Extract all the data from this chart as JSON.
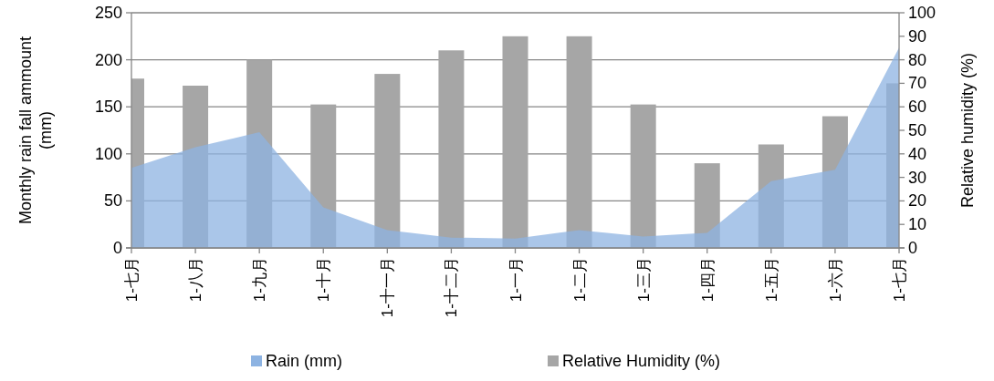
{
  "chart_data": {
    "type": "bar",
    "ylabel": "Monthly rain fall ammount (mm)",
    "y2label": "Relative humidity (%)",
    "categories": [
      "1-七月",
      "1-八月",
      "1-九月",
      "1-十月",
      "1-十一月",
      "1-十二月",
      "1-一月",
      "1-二月",
      "1-三月",
      "1-四月",
      "1-五月",
      "1-六月",
      "1-七月"
    ],
    "series": [
      {
        "name": "Rain (mm)",
        "type": "area",
        "color": "#8db3e2",
        "values": [
          85,
          107,
          123,
          43,
          19,
          11,
          10,
          19,
          12,
          16,
          71,
          83,
          213
        ]
      },
      {
        "name": "Relative Humidity (%)",
        "axis": "y2",
        "color": "#a6a6a6",
        "values": [
          72,
          69,
          80,
          61,
          74,
          84,
          90,
          90,
          61,
          36,
          44,
          56,
          70
        ]
      }
    ],
    "ylim": [
      0,
      250
    ],
    "yticks": [
      0,
      50,
      100,
      150,
      200,
      250
    ],
    "y2lim": [
      0,
      100
    ],
    "y2ticks": [
      0,
      10,
      20,
      30,
      40,
      50,
      60,
      70,
      80,
      90,
      100
    ],
    "grid": "y",
    "legend": "bottom"
  }
}
